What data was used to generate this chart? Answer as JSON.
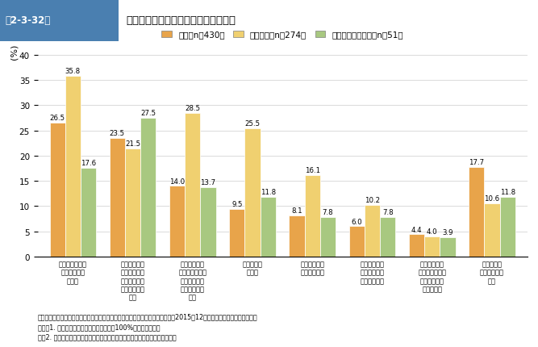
{
  "title": "第2-3-32図　海外展開投資別に見た人材育成の課題",
  "ylabel": "(%)",
  "ylim": [
    0,
    40
  ],
  "yticks": [
    0,
    5,
    10,
    15,
    20,
    25,
    30,
    35,
    40
  ],
  "legend_labels": [
    "輸出（n＝430）",
    "直接投資（n＝274）",
    "インバウンド対応（n＝51）"
  ],
  "bar_colors": [
    "#E8A44A",
    "#F0D070",
    "#A8C880"
  ],
  "categories": [
    "人材指導・育成\nのノウハウが\n乏しい",
    "業務多忙によ\nり人材育成に\nかかる時間・\n体制的余裕が\nない",
    "言語・文化・\n商慣習の違いの\nためコミュニ\nケーションが\n困難",
    "人材が定着\nしない",
    "人材のモチベ\nーション不足",
    "人材育成にか\nかるコストが\n負担できない",
    "外部研修など\n外部機関・専門\n家とのネット\nワーク不足",
    "人材育成に\nかかる課題は\nない"
  ],
  "series": {
    "輸出": [
      26.5,
      23.5,
      14.0,
      9.5,
      8.1,
      6.0,
      4.4,
      17.7
    ],
    "直接投資": [
      35.8,
      21.5,
      28.5,
      25.5,
      16.1,
      10.2,
      4.0,
      10.6
    ],
    "インバウンド対応": [
      17.6,
      27.5,
      13.7,
      11.8,
      7.8,
      7.8,
      3.9,
      11.8
    ]
  },
  "footnote": "資料：中小企業庁委託「中小企業の成長と投資行動に関するアンケート調査」（2015年12月、（株）帝国データバンク）\n（注）1. 複数回答のため、合計は必ずしも100%にはならない。\n　　2. 輸出、直接投資、インバウンド対応を行っている企業を集計している。",
  "header_bg": "#4A7FB0",
  "header_text_color": "#FFFFFF"
}
